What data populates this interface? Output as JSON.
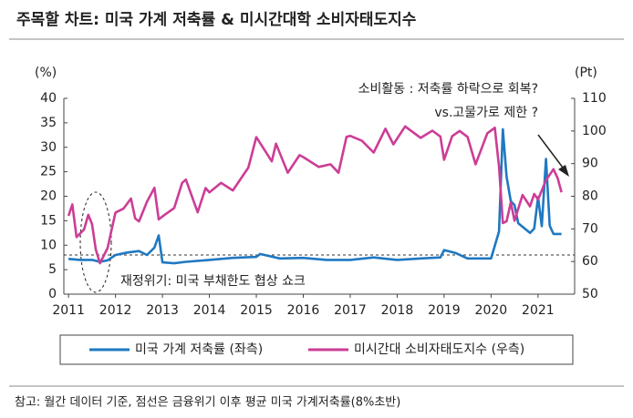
{
  "chart_data": {
    "type": "line",
    "title": "주목할 차트: 미국 가계 저축률 & 미시간대학 소비자태도지수",
    "y_unit": "(%)",
    "y2_unit": "(Pt)",
    "annotations": [
      "소비활동 : 저축률 하락으로 회복?",
      "vs.고물가로 제한 ?",
      "재정위기: 미국 부채한도 협상 쇼크"
    ],
    "footnote": "참고: 월간 데이터 기준, 점선은 금융위기 이후 평균 미국 가계저축률(8%초반)",
    "reference_line": 8,
    "xlim": [
      2010.9,
      2021.78
    ],
    "xticks": [
      2011,
      2012,
      2013,
      2014,
      2015,
      2016,
      2017,
      2018,
      2019,
      2020,
      2021
    ],
    "ylim": [
      0,
      40
    ],
    "yticks": [
      0,
      5,
      10,
      15,
      20,
      25,
      30,
      35,
      40
    ],
    "y2lim": [
      50,
      110
    ],
    "y2ticks": [
      50,
      60,
      70,
      80,
      90,
      100,
      110
    ],
    "series": [
      {
        "name": "미국 가계 저축률 (좌측)",
        "color": "#1f78c1",
        "x": [
          2011.0,
          2011.25,
          2011.5,
          2011.67,
          2011.83,
          2012.0,
          2012.25,
          2012.5,
          2012.67,
          2012.83,
          2012.92,
          2013.0,
          2013.25,
          2013.5,
          2014.0,
          2014.5,
          2015.0,
          2015.08,
          2015.5,
          2016.0,
          2016.5,
          2017.0,
          2017.5,
          2018.0,
          2018.5,
          2018.92,
          2019.0,
          2019.25,
          2019.5,
          2020.0,
          2020.17,
          2020.25,
          2020.33,
          2020.42,
          2020.5,
          2020.58,
          2020.83,
          2020.92,
          2021.0,
          2021.08,
          2021.17,
          2021.25,
          2021.33,
          2021.5
        ],
        "values": [
          7.2,
          7.0,
          7.0,
          6.6,
          6.9,
          8.0,
          8.5,
          8.8,
          8.0,
          9.5,
          12.0,
          6.5,
          6.3,
          6.6,
          7.0,
          7.4,
          7.6,
          8.2,
          7.3,
          7.4,
          7.0,
          7.0,
          7.5,
          7.0,
          7.3,
          7.5,
          9.0,
          8.4,
          7.3,
          7.3,
          12.8,
          33.7,
          24.0,
          19.0,
          18.2,
          14.5,
          12.5,
          13.4,
          19.8,
          13.9,
          27.6,
          14.0,
          12.3,
          12.3
        ]
      },
      {
        "name": "미시간대 소비자태도지수 (우측)",
        "color": "#cc3d96",
        "axis": "y2",
        "x": [
          2011.0,
          2011.08,
          2011.17,
          2011.33,
          2011.42,
          2011.5,
          2011.58,
          2011.67,
          2011.83,
          2011.92,
          2012.0,
          2012.17,
          2012.33,
          2012.42,
          2012.5,
          2012.67,
          2012.83,
          2012.92,
          2013.0,
          2013.25,
          2013.42,
          2013.5,
          2013.75,
          2013.92,
          2014.0,
          2014.25,
          2014.5,
          2014.83,
          2015.0,
          2015.33,
          2015.42,
          2015.67,
          2015.92,
          2016.0,
          2016.33,
          2016.58,
          2016.75,
          2016.92,
          2017.0,
          2017.25,
          2017.5,
          2017.75,
          2017.92,
          2018.17,
          2018.5,
          2018.75,
          2018.92,
          2019.0,
          2019.17,
          2019.33,
          2019.5,
          2019.67,
          2019.92,
          2020.08,
          2020.17,
          2020.25,
          2020.33,
          2020.42,
          2020.5,
          2020.67,
          2020.83,
          2020.92,
          2021.0,
          2021.17,
          2021.33,
          2021.42,
          2021.5
        ],
        "values": [
          74,
          77.5,
          67.5,
          69.8,
          74.3,
          71.5,
          63.7,
          59.5,
          64.1,
          69.9,
          75,
          76.2,
          79.3,
          73.2,
          72.3,
          78.3,
          82.6,
          72.9,
          73.8,
          76.4,
          84.1,
          85.1,
          75.1,
          82.5,
          81.2,
          84.1,
          81.8,
          88.8,
          98.1,
          90.7,
          96.1,
          87.2,
          92.6,
          92.0,
          89.0,
          89.8,
          87.2,
          98.2,
          98.5,
          97.0,
          93.4,
          100.7,
          95.9,
          101.4,
          97.9,
          100.1,
          98.3,
          91.2,
          98.4,
          100.0,
          98.2,
          89.8,
          99.3,
          101.0,
          89.1,
          71.8,
          72.3,
          78.1,
          72.5,
          80.4,
          76.9,
          80.7,
          79.0,
          84.9,
          88.3,
          85.5,
          81.2
        ]
      }
    ]
  }
}
